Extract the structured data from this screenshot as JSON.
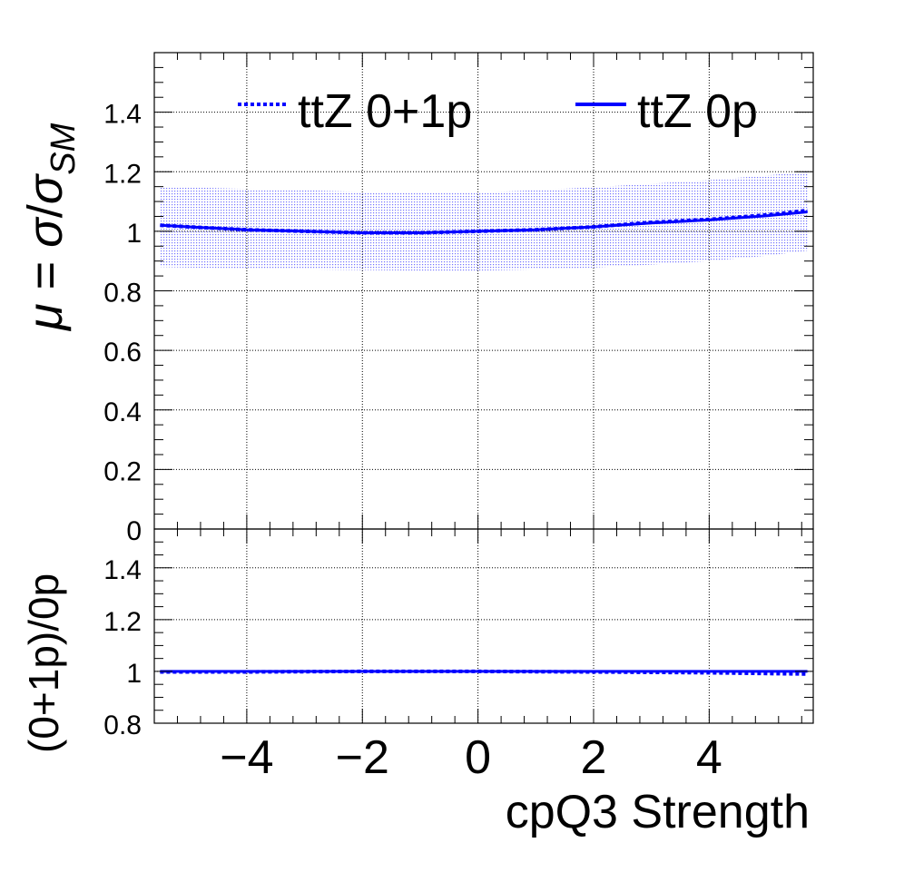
{
  "chart_data": [
    {
      "type": "line",
      "panel": "main",
      "ylabel_parts": {
        "mu": "μ",
        "eq": " = ",
        "sigma1": "σ",
        "slash": "/",
        "sigma2": "σ",
        "sub": "SM"
      },
      "xlim": [
        -5.6,
        5.8
      ],
      "ylim": [
        0,
        1.6
      ],
      "yticks": [
        0,
        0.2,
        0.4,
        0.6,
        0.8,
        1,
        1.2,
        1.4
      ],
      "ytick_labels": [
        "0",
        "0.2",
        "0.4",
        "0.6",
        "0.8",
        "1",
        "1.2",
        "1.4"
      ],
      "grid": true,
      "legend": {
        "placement": "top",
        "entries": [
          "ttZ 0+1p",
          "ttZ 0p"
        ]
      },
      "x": [
        -5.5,
        -5,
        -4,
        -3,
        -2,
        -1,
        0,
        1,
        2,
        3,
        4,
        5,
        5.7
      ],
      "series": [
        {
          "name": "ttZ 0+1p",
          "style": "dotted",
          "color": "#0000ff",
          "values": [
            1.02,
            1.015,
            1.005,
            1.0,
            0.995,
            0.995,
            1.0,
            1.005,
            1.015,
            1.03,
            1.04,
            1.055,
            1.07
          ]
        },
        {
          "name": "ttZ 0p",
          "style": "solid",
          "color": "#0000ff",
          "values": [
            1.02,
            1.015,
            1.005,
            1.0,
            0.995,
            0.995,
            1.0,
            1.005,
            1.015,
            1.028,
            1.038,
            1.052,
            1.065
          ]
        }
      ],
      "band": {
        "color": "#0000ff",
        "lower": [
          0.88,
          0.878,
          0.875,
          0.872,
          0.87,
          0.868,
          0.868,
          0.872,
          0.878,
          0.888,
          0.9,
          0.918,
          0.935
        ],
        "upper": [
          1.15,
          1.148,
          1.142,
          1.138,
          1.132,
          1.13,
          1.13,
          1.138,
          1.148,
          1.16,
          1.172,
          1.188,
          1.2
        ]
      }
    },
    {
      "type": "line",
      "panel": "ratio",
      "ylabel": "(0+1p)/0p",
      "xlabel": "cpQ3 Strength",
      "xlim": [
        -5.6,
        5.8
      ],
      "ylim": [
        0.8,
        1.55
      ],
      "xticks": [
        -4,
        -2,
        0,
        2,
        4
      ],
      "xtick_labels": [
        "−4",
        "−2",
        "0",
        "2",
        "4"
      ],
      "yticks": [
        0.8,
        1,
        1.2,
        1.4
      ],
      "ytick_labels": [
        "0.8",
        "1",
        "1.2",
        "1.4"
      ],
      "grid": true,
      "x": [
        -5.5,
        -4,
        -2,
        0,
        2,
        4,
        5.7
      ],
      "series": [
        {
          "name": "(0+1p)/0p",
          "style": "solid",
          "color": "#0000ff",
          "values": [
            1.0,
            1.0,
            1.0,
            1.0,
            1.0,
            1.0,
            1.0
          ]
        },
        {
          "name": "(0+1p)/0p dotted",
          "style": "dotted",
          "color": "#0000ff",
          "values": [
            0.998,
            0.998,
            1.0,
            1.0,
            0.998,
            0.995,
            0.99
          ]
        }
      ]
    }
  ]
}
